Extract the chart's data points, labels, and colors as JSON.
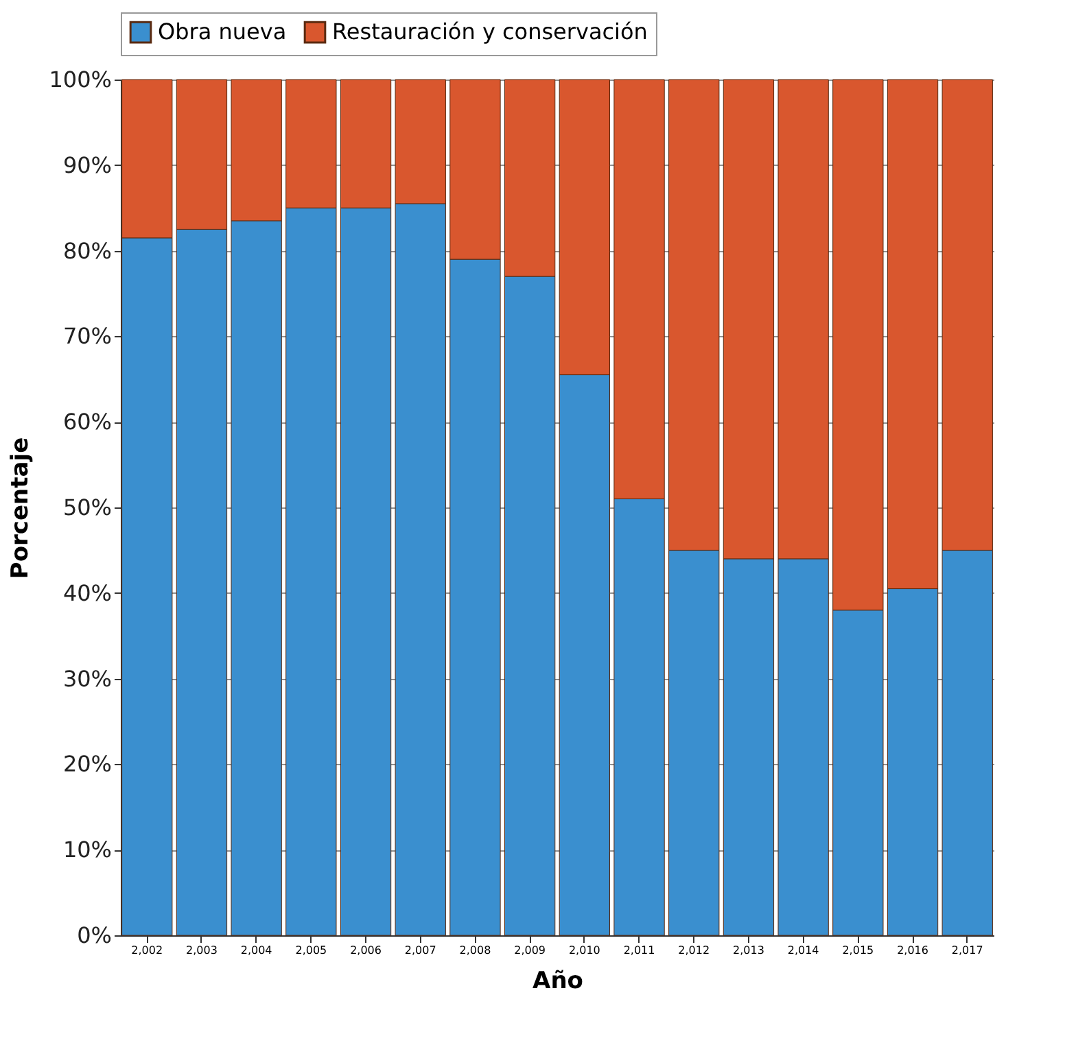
{
  "chart_data": {
    "type": "bar",
    "stacked": true,
    "xlabel": "Año",
    "ylabel": "Porcentaje",
    "categories": [
      "2,002",
      "2,003",
      "2,004",
      "2,005",
      "2,006",
      "2,007",
      "2,008",
      "2,009",
      "2,010",
      "2,011",
      "2,012",
      "2,013",
      "2,014",
      "2,015",
      "2,016",
      "2,017"
    ],
    "series": [
      {
        "name": "Obra nueva",
        "color": "#3a8fcf",
        "values": [
          81.5,
          82.5,
          83.5,
          85,
          85,
          85.5,
          79,
          77,
          65.5,
          51,
          45,
          44,
          44,
          38,
          40.5,
          45
        ]
      },
      {
        "name": "Restauración y conservación",
        "color": "#d9572e",
        "values": [
          18.5,
          17.5,
          16.5,
          15,
          15,
          14.5,
          21,
          23,
          34.5,
          49,
          55,
          56,
          56,
          62,
          59.5,
          55
        ]
      }
    ],
    "ylim": [
      0,
      100
    ],
    "yticks": [
      {
        "value": 0,
        "label": "0%"
      },
      {
        "value": 10,
        "label": "10%"
      },
      {
        "value": 20,
        "label": "20%"
      },
      {
        "value": 30,
        "label": "30%"
      },
      {
        "value": 40,
        "label": "40%"
      },
      {
        "value": 50,
        "label": "50%"
      },
      {
        "value": 60,
        "label": "60%"
      },
      {
        "value": 70,
        "label": "70%"
      },
      {
        "value": 80,
        "label": "80%"
      },
      {
        "value": 90,
        "label": "90%"
      },
      {
        "value": 100,
        "label": "100%"
      }
    ],
    "grid": "y",
    "legend": "top"
  }
}
